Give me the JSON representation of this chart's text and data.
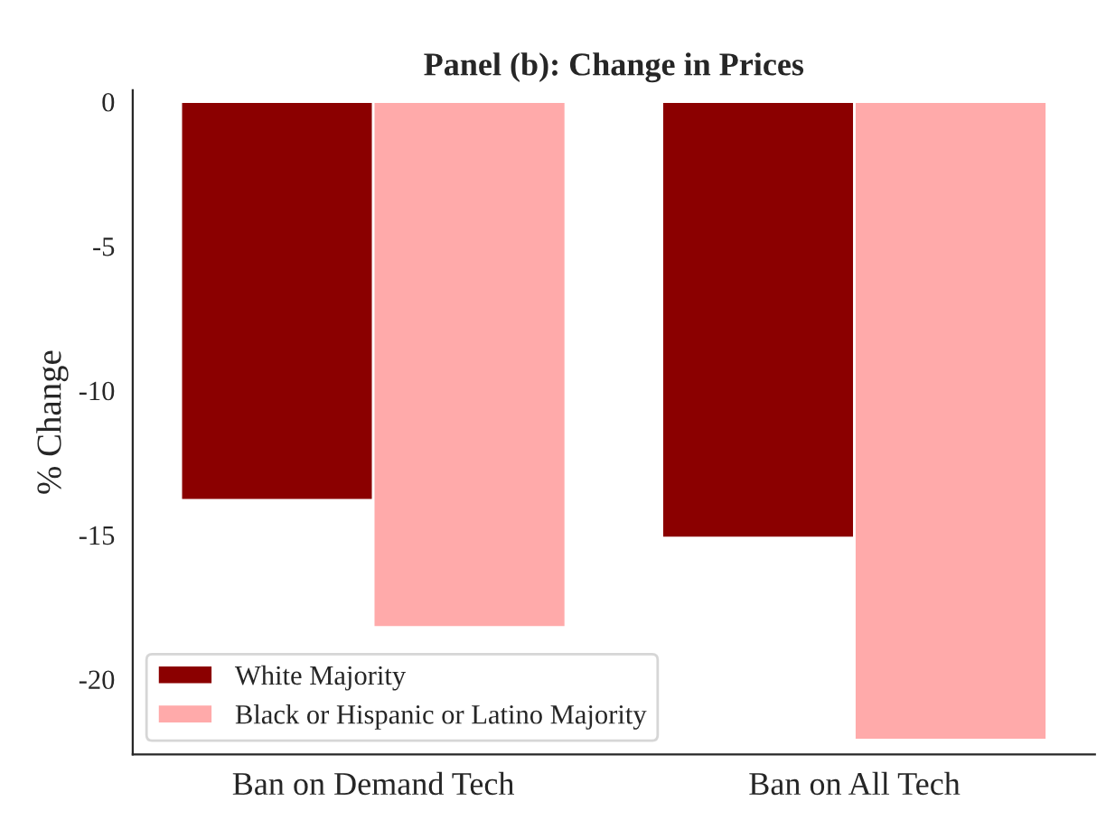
{
  "chart_data": {
    "type": "bar",
    "title": "Panel (b): Change in Prices",
    "ylabel": "% Change",
    "categories": [
      "Ban on Demand Tech",
      "Ban on All Tech"
    ],
    "series": [
      {
        "name": "White Majority",
        "color": "#8b0000",
        "values": [
          -13.8,
          -15.1
        ]
      },
      {
        "name": "Black or Hispanic or Latino Majority",
        "color": "#ffaaaa",
        "values": [
          -18.2,
          -22.1
        ]
      }
    ],
    "ylim": [
      -22.6,
      0.4
    ],
    "yticks": [
      0,
      -5,
      -10,
      -15,
      -20
    ],
    "grid": false,
    "legend": "bottom left"
  }
}
